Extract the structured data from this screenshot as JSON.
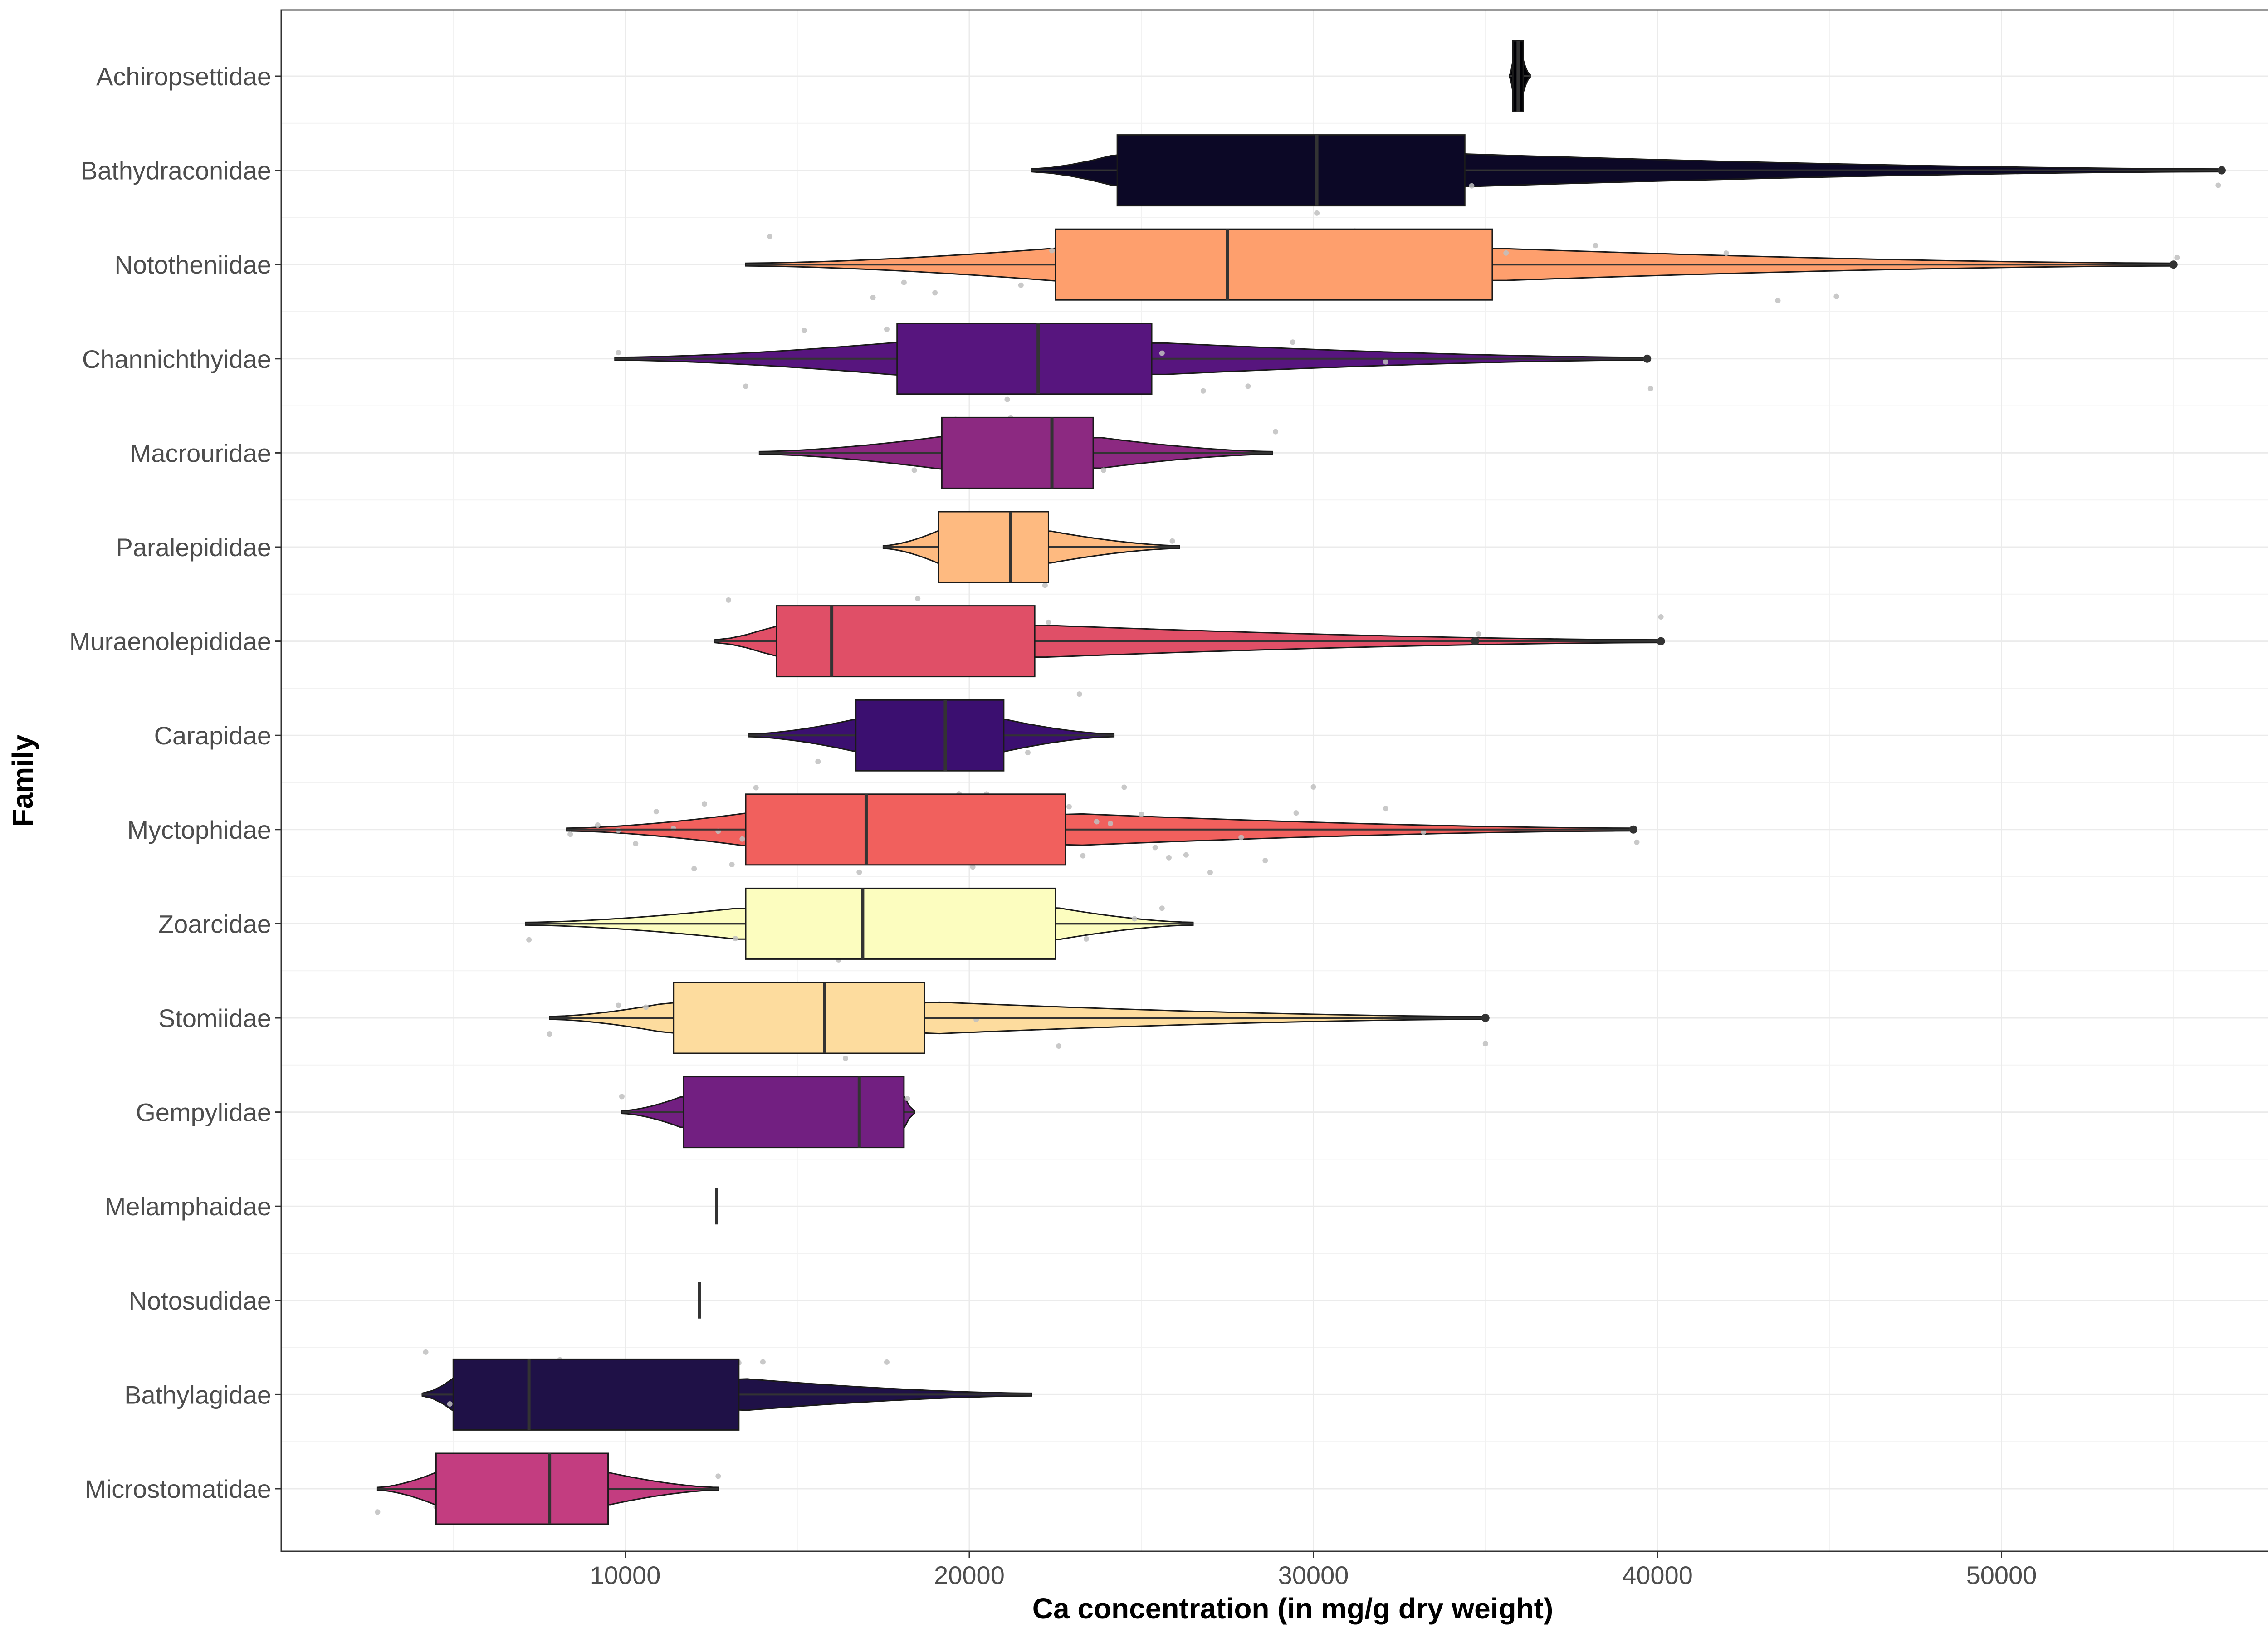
{
  "chart_data": {
    "type": "boxplot-violin",
    "title": "",
    "xlabel": "Ca concentration (in mg/g dry weight)",
    "ylabel": "Family",
    "xlim": [
      0,
      58800
    ],
    "x_ticks": [
      10000,
      20000,
      30000,
      40000,
      50000
    ],
    "x_tick_labels": [
      "10000",
      "20000",
      "30000",
      "40000",
      "50000"
    ],
    "grid": true,
    "legend": "none",
    "categories": [
      "Achiropsettidae",
      "Bathydraconidae",
      "Nototheniidae",
      "Channichthyidae",
      "Macrouridae",
      "Paralepididae",
      "Muraenolepididae",
      "Carapidae",
      "Myctophidae",
      "Zoarcidae",
      "Stomiidae",
      "Gempylidae",
      "Melamphaidae",
      "Notosudidae",
      "Bathylagidae",
      "Microstomatidae"
    ],
    "series": [
      {
        "family": "Achiropsettidae",
        "min": 35700,
        "q1": 35800,
        "median": 35950,
        "q3": 36100,
        "max": 36300,
        "outliers": [],
        "color": "#000004",
        "points": [
          35900,
          36000
        ]
      },
      {
        "family": "Bathydraconidae",
        "min": 21800,
        "q1": 24300,
        "median": 30100,
        "q3": 34400,
        "max": 56400,
        "outliers": [
          56400
        ],
        "color": "#0c0826",
        "points": [
          24400,
          30100,
          34600,
          56300
        ]
      },
      {
        "family": "Nototheniidae",
        "min": 13500,
        "q1": 22500,
        "median": 27500,
        "q3": 35200,
        "max": 55000,
        "outliers": [
          55000
        ],
        "color": "#fe9f6d",
        "points": [
          14200,
          17200,
          18100,
          19000,
          21500,
          22400,
          23100,
          24300,
          25600,
          26800,
          27400,
          28200,
          29600,
          30400,
          31200,
          32800,
          34100,
          35600,
          38200,
          42000,
          43500,
          45200,
          55100
        ]
      },
      {
        "family": "Channichthyidae",
        "min": 9700,
        "q1": 17900,
        "median": 22000,
        "q3": 25300,
        "max": 39700,
        "outliers": [
          39700
        ],
        "color": "#57157e",
        "points": [
          9800,
          13500,
          15200,
          17600,
          18800,
          19400,
          20300,
          21100,
          22400,
          23100,
          24200,
          25600,
          26800,
          28100,
          29400,
          32100,
          39800
        ]
      },
      {
        "family": "Macrouridae",
        "min": 13900,
        "q1": 19200,
        "median": 22400,
        "q3": 23600,
        "max": 28800,
        "outliers": [],
        "color": "#8c2981",
        "points": [
          18400,
          19600,
          20500,
          21200,
          22300,
          23100,
          23900,
          28900
        ]
      },
      {
        "family": "Paralepididae",
        "min": 17500,
        "q1": 19100,
        "median": 21200,
        "q3": 22300,
        "max": 26100,
        "outliers": [],
        "color": "#feba80",
        "points": [
          19300,
          20600,
          21100,
          22200,
          25900
        ]
      },
      {
        "family": "Muraenolepididae",
        "min": 12600,
        "q1": 14400,
        "median": 16000,
        "q3": 21900,
        "max": 40100,
        "outliers": [
          34700,
          40100
        ],
        "color": "#e04f67",
        "points": [
          13000,
          14600,
          15800,
          17300,
          18500,
          20100,
          22300,
          34800,
          40100
        ]
      },
      {
        "family": "Carapidae",
        "min": 13600,
        "q1": 16700,
        "median": 19300,
        "q3": 21000,
        "max": 24200,
        "outliers": [],
        "color": "#3b0f70",
        "points": [
          15600,
          17400,
          18400,
          19900,
          20600,
          21700,
          23200
        ]
      },
      {
        "family": "Myctophidae",
        "min": 8300,
        "q1": 13500,
        "median": 17000,
        "q3": 22800,
        "max": 39300,
        "outliers": [
          39300
        ],
        "color": "#f1605d",
        "points": [
          8400,
          9200,
          9800,
          10300,
          10900,
          11400,
          12000,
          12300,
          12700,
          13100,
          13400,
          13800,
          14200,
          14500,
          14900,
          15300,
          15600,
          16000,
          16400,
          16800,
          17100,
          17500,
          17800,
          18200,
          18600,
          19000,
          19300,
          19700,
          20100,
          20500,
          20900,
          21300,
          21700,
          22100,
          22500,
          22900,
          23300,
          23700,
          24100,
          24500,
          25000,
          25400,
          25800,
          26300,
          27000,
          27900,
          28600,
          29500,
          30000,
          32100,
          33200,
          39400
        ]
      },
      {
        "family": "Zoarcidae",
        "min": 7100,
        "q1": 13500,
        "median": 16900,
        "q3": 22500,
        "max": 26500,
        "outliers": [],
        "color": "#fcfdbf",
        "points": [
          7200,
          13200,
          14500,
          15800,
          16200,
          17600,
          18700,
          19900,
          21300,
          23400,
          24800,
          25600
        ]
      },
      {
        "family": "Stomiidae",
        "min": 7800,
        "q1": 11400,
        "median": 15800,
        "q3": 18700,
        "max": 35000,
        "outliers": [
          35000
        ],
        "color": "#fddc9e",
        "points": [
          7800,
          9800,
          10600,
          11500,
          12100,
          13700,
          15800,
          16400,
          18300,
          20200,
          22600,
          35000
        ]
      },
      {
        "family": "Gempylidae",
        "min": 9900,
        "q1": 11700,
        "median": 16800,
        "q3": 18100,
        "max": 18400,
        "outliers": [],
        "color": "#721f81",
        "points": [
          9900,
          12400,
          14500,
          16000,
          17100,
          18200
        ]
      },
      {
        "family": "Melamphaidae",
        "min": 12650,
        "q1": 12650,
        "median": 12650,
        "q3": 12650,
        "max": 12650,
        "outliers": [],
        "color": "#b73779",
        "points": []
      },
      {
        "family": "Notosudidae",
        "min": 12150,
        "q1": 12150,
        "median": 12150,
        "q3": 12150,
        "max": 12150,
        "outliers": [],
        "color": "#2d1160",
        "points": []
      },
      {
        "family": "Bathylagidae",
        "min": 4100,
        "q1": 5000,
        "median": 7200,
        "q3": 13300,
        "max": 21800,
        "outliers": [],
        "color": "#1f1147",
        "points": [
          4200,
          4900,
          5300,
          8100,
          13300,
          14000,
          17600
        ]
      },
      {
        "family": "Microstomatidae",
        "min": 2800,
        "q1": 4500,
        "median": 7800,
        "q3": 9500,
        "max": 12700,
        "outliers": [],
        "color": "#c33d80",
        "points": [
          2800,
          4500,
          7800,
          12700
        ]
      }
    ]
  }
}
